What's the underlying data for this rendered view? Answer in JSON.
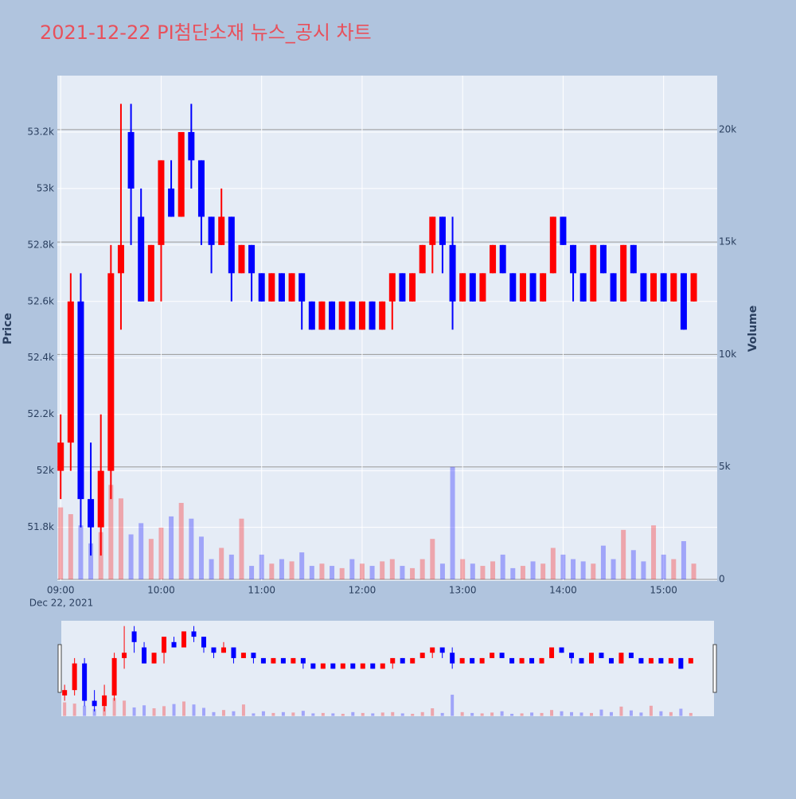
{
  "chart_data": {
    "type": "candlestick",
    "title": "2021-12-22 PI첨단소재 뉴스_공시 차트",
    "yaxis_title": "Price",
    "y2axis_title": "Volume",
    "date_label": "Dec 22, 2021",
    "increasing_color": "#ff0000",
    "decreasing_color": "#0000ff",
    "grid": true,
    "rangeslider": true,
    "xlim": [
      "08:58",
      "15:32"
    ],
    "xticks": [
      "09:00",
      "10:00",
      "11:00",
      "12:00",
      "13:00",
      "14:00",
      "15:00"
    ],
    "ylim": [
      51610,
      53400
    ],
    "yticks": [
      {
        "value": 51800,
        "label": "51.8k"
      },
      {
        "value": 52000,
        "label": "52k"
      },
      {
        "value": 52200,
        "label": "52.2k"
      },
      {
        "value": 52400,
        "label": "52.4k"
      },
      {
        "value": 52600,
        "label": "52.6k"
      },
      {
        "value": 52800,
        "label": "52.8k"
      },
      {
        "value": 53000,
        "label": "53k"
      },
      {
        "value": 53200,
        "label": "53.2k"
      }
    ],
    "y2lim": [
      -70,
      22400
    ],
    "y2ticks": [
      0,
      {
        "value": 5000,
        "label": "5k"
      },
      {
        "value": 10000,
        "label": "10k"
      },
      {
        "value": 15000,
        "label": "15k"
      },
      {
        "value": 20000,
        "label": "20k"
      }
    ],
    "x": [
      "09:00",
      "09:06",
      "09:12",
      "09:18",
      "09:24",
      "09:30",
      "09:36",
      "09:42",
      "09:48",
      "09:54",
      "10:00",
      "10:06",
      "10:12",
      "10:18",
      "10:24",
      "10:30",
      "10:36",
      "10:42",
      "10:48",
      "10:54",
      "11:00",
      "11:06",
      "11:12",
      "11:18",
      "11:24",
      "11:30",
      "11:36",
      "11:42",
      "11:48",
      "11:54",
      "12:00",
      "12:06",
      "12:12",
      "12:18",
      "12:24",
      "12:30",
      "12:36",
      "12:42",
      "12:48",
      "12:54",
      "13:00",
      "13:06",
      "13:12",
      "13:18",
      "13:24",
      "13:30",
      "13:36",
      "13:42",
      "13:48",
      "13:54",
      "14:00",
      "14:06",
      "14:12",
      "14:18",
      "14:24",
      "14:30",
      "14:36",
      "14:42",
      "14:48",
      "14:54",
      "15:00",
      "15:06",
      "15:12",
      "15:18"
    ],
    "open": [
      52000,
      52100,
      52600,
      51900,
      51800,
      52000,
      52700,
      53200,
      52900,
      52600,
      52800,
      53000,
      52900,
      53200,
      53100,
      52900,
      52800,
      52900,
      52700,
      52800,
      52700,
      52600,
      52700,
      52600,
      52700,
      52600,
      52500,
      52600,
      52500,
      52600,
      52500,
      52600,
      52500,
      52600,
      52700,
      52600,
      52700,
      52800,
      52900,
      52800,
      52600,
      52700,
      52600,
      52700,
      52800,
      52700,
      52600,
      52700,
      52600,
      52700,
      52900,
      52800,
      52700,
      52600,
      52800,
      52700,
      52600,
      52800,
      52700,
      52600,
      52700,
      52600,
      52700,
      52600
    ],
    "high": [
      52200,
      52700,
      52700,
      52100,
      52200,
      52800,
      53300,
      53300,
      53000,
      52800,
      53100,
      53100,
      53200,
      53300,
      53100,
      52900,
      53000,
      52900,
      52800,
      52800,
      52700,
      52700,
      52700,
      52700,
      52700,
      52600,
      52600,
      52600,
      52600,
      52600,
      52600,
      52600,
      52600,
      52700,
      52700,
      52700,
      52800,
      52900,
      52900,
      52900,
      52700,
      52700,
      52700,
      52800,
      52800,
      52700,
      52700,
      52700,
      52700,
      52900,
      52900,
      52800,
      52700,
      52800,
      52800,
      52700,
      52800,
      52800,
      52700,
      52700,
      52700,
      52700,
      52700,
      52700
    ],
    "low": [
      51900,
      52000,
      51800,
      51700,
      51700,
      51900,
      52500,
      52800,
      52600,
      52600,
      52600,
      52900,
      52900,
      53000,
      52800,
      52700,
      52800,
      52600,
      52700,
      52600,
      52600,
      52600,
      52600,
      52600,
      52500,
      52500,
      52500,
      52500,
      52500,
      52500,
      52500,
      52500,
      52500,
      52500,
      52600,
      52600,
      52700,
      52700,
      52700,
      52500,
      52600,
      52600,
      52600,
      52700,
      52700,
      52600,
      52600,
      52600,
      52600,
      52700,
      52800,
      52600,
      52600,
      52600,
      52700,
      52600,
      52600,
      52700,
      52600,
      52600,
      52600,
      52600,
      52500,
      52600
    ],
    "close": [
      52100,
      52600,
      51900,
      51800,
      52000,
      52700,
      52800,
      53000,
      52600,
      52800,
      53100,
      52900,
      53200,
      53100,
      52900,
      52800,
      52900,
      52700,
      52800,
      52700,
      52600,
      52700,
      52600,
      52700,
      52600,
      52500,
      52600,
      52500,
      52600,
      52500,
      52600,
      52500,
      52600,
      52700,
      52600,
      52700,
      52800,
      52900,
      52800,
      52600,
      52700,
      52600,
      52700,
      52800,
      52700,
      52600,
      52700,
      52600,
      52700,
      52900,
      52800,
      52700,
      52600,
      52800,
      52700,
      52600,
      52800,
      52700,
      52600,
      52700,
      52600,
      52700,
      52500,
      52700
    ],
    "volume": [
      3200,
      2900,
      2400,
      1600,
      2100,
      4200,
      3600,
      2000,
      2500,
      1800,
      2300,
      2800,
      3400,
      2700,
      1900,
      900,
      1400,
      1100,
      2700,
      600,
      1100,
      700,
      900,
      800,
      1200,
      600,
      700,
      600,
      500,
      900,
      700,
      600,
      800,
      900,
      600,
      500,
      900,
      1800,
      700,
      5000,
      900,
      700,
      600,
      800,
      1100,
      500,
      600,
      800,
      700,
      1400,
      1100,
      900,
      800,
      700,
      1500,
      900,
      2200,
      1300,
      800,
      2400,
      1100,
      900,
      1700,
      700
    ]
  }
}
